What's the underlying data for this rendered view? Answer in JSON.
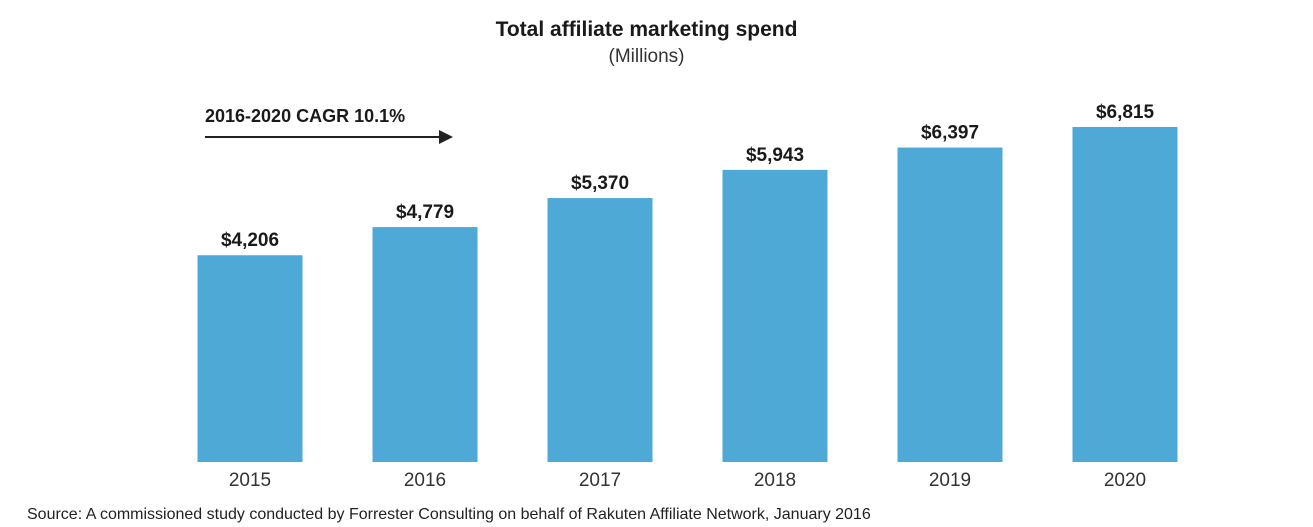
{
  "chart_data": {
    "type": "bar",
    "title": "Total affiliate marketing spend",
    "subtitle": "(Millions)",
    "categories": [
      "2015",
      "2016",
      "2017",
      "2018",
      "2019",
      "2020"
    ],
    "values": [
      4206,
      4779,
      5370,
      5943,
      6397,
      6815
    ],
    "value_labels": [
      "$4,206",
      "$4,779",
      "$5,370",
      "$5,943",
      "$6,397",
      "$6,815"
    ],
    "annotation": "2016-2020 CAGR  10.1%",
    "ylim": [
      0,
      6815
    ],
    "grid": false,
    "bar_color": "#4fa9d6"
  },
  "source": "Source: A commissioned study conducted by Forrester Consulting on behalf of Rakuten Affiliate Network, January 2016"
}
